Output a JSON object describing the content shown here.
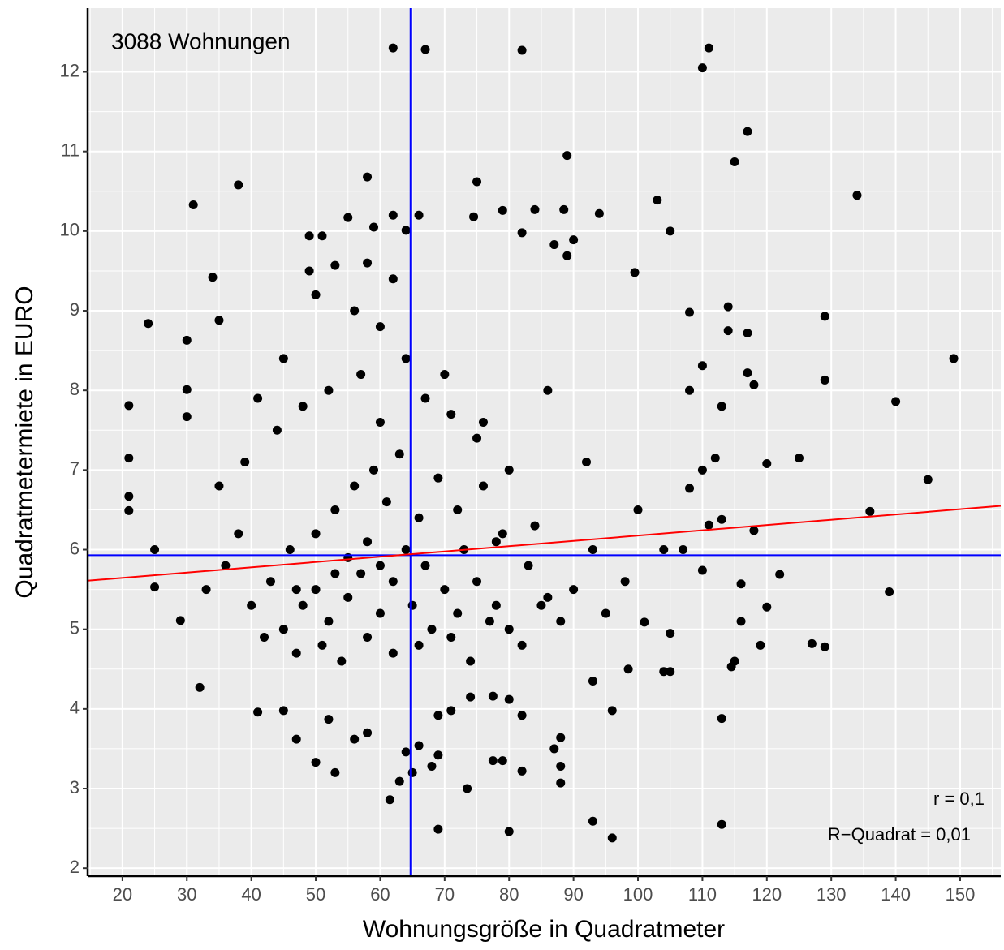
{
  "chart_data": {
    "type": "scatter",
    "x_label": "Wohnungsgröße in Quadratmeter",
    "y_label": "Quadratmetermiete in EURO",
    "annotations": [
      "3088 Wohnungen",
      "r = 0,1",
      "R−Quadrat = 0,01"
    ],
    "xlim": [
      14.6,
      156.3
    ],
    "ylim": [
      1.9,
      12.8
    ],
    "xticks": [
      20,
      30,
      40,
      50,
      60,
      70,
      80,
      90,
      100,
      110,
      120,
      130,
      140,
      150
    ],
    "yticks": [
      2,
      3,
      4,
      5,
      6,
      7,
      8,
      9,
      10,
      11,
      12
    ],
    "grid": true,
    "color": "#000000",
    "x": [
      62,
      67,
      82,
      111,
      110,
      117,
      115,
      89,
      58,
      38,
      31,
      75,
      134,
      103,
      105,
      99.5,
      34,
      149,
      140,
      145,
      129,
      129,
      120,
      125,
      136,
      139,
      129,
      127,
      119,
      113,
      96,
      93,
      80,
      69,
      61.5,
      53,
      50,
      113,
      96,
      24,
      21,
      21,
      21,
      21,
      25,
      25,
      30,
      30,
      30,
      35,
      32,
      29,
      120,
      122,
      118,
      116,
      116,
      115,
      114.5,
      111,
      110,
      110,
      108,
      108,
      108,
      110,
      114,
      114,
      117,
      117,
      118,
      113,
      112,
      113,
      104,
      107,
      105,
      105,
      104,
      101,
      98.5,
      94,
      90,
      89,
      88.5,
      87,
      84,
      82,
      79,
      74.5,
      66,
      62,
      64,
      59,
      55,
      49,
      51,
      53,
      49,
      64,
      63,
      66,
      68,
      69,
      65,
      73.5,
      77.5,
      79,
      82,
      88,
      88,
      88,
      87,
      80,
      77.5,
      74,
      71,
      69,
      58,
      56,
      52,
      47,
      41,
      45,
      82,
      93,
      45,
      48,
      50,
      52,
      55,
      57,
      60,
      62,
      65,
      68,
      70,
      72,
      75,
      78,
      80,
      43,
      46,
      50,
      53,
      56,
      59,
      61,
      63,
      66,
      69,
      72,
      76,
      79,
      83,
      86,
      88,
      40,
      42,
      47,
      51,
      54,
      58,
      62,
      66,
      71,
      74,
      77,
      82,
      85,
      90,
      38,
      36,
      33,
      35,
      39,
      44,
      48,
      52,
      57,
      60,
      64,
      67,
      71,
      75,
      80,
      58,
      55,
      60,
      53,
      47,
      64,
      67,
      73,
      78,
      84,
      93,
      95,
      98,
      92,
      100,
      56,
      60,
      62,
      58,
      50,
      45,
      41,
      70,
      76,
      86
    ],
    "values": [
      12.3,
      12.28,
      12.27,
      12.3,
      12.05,
      11.25,
      10.87,
      10.95,
      10.68,
      10.58,
      10.33,
      10.62,
      10.45,
      10.39,
      10.0,
      9.48,
      9.42,
      8.4,
      7.86,
      6.88,
      8.93,
      8.13,
      7.08,
      7.15,
      6.48,
      5.47,
      4.78,
      4.82,
      4.8,
      2.55,
      2.38,
      2.59,
      2.46,
      2.49,
      2.86,
      3.2,
      3.33,
      3.88,
      3.98,
      8.84,
      7.81,
      7.15,
      6.67,
      6.49,
      6.0,
      5.53,
      8.01,
      7.67,
      8.63,
      8.88,
      4.27,
      5.11,
      5.28,
      5.69,
      6.24,
      5.57,
      5.1,
      4.6,
      4.53,
      6.31,
      5.74,
      7.0,
      6.77,
      8.0,
      8.98,
      8.31,
      9.05,
      8.75,
      8.72,
      8.22,
      8.07,
      7.8,
      7.15,
      6.38,
      6.0,
      6.0,
      4.95,
      4.47,
      4.47,
      5.09,
      4.5,
      10.22,
      9.89,
      9.69,
      10.27,
      9.83,
      10.27,
      9.98,
      10.26,
      10.18,
      10.2,
      10.2,
      10.01,
      10.05,
      10.17,
      9.94,
      9.94,
      9.57,
      9.5,
      3.46,
      3.09,
      3.54,
      3.28,
      3.42,
      3.2,
      3.0,
      3.35,
      3.35,
      3.22,
      3.07,
      3.28,
      3.64,
      3.5,
      4.12,
      4.16,
      4.15,
      3.98,
      3.92,
      3.7,
      3.62,
      3.87,
      3.62,
      3.96,
      3.98,
      3.92,
      4.35,
      5.0,
      5.3,
      5.5,
      5.1,
      5.4,
      5.7,
      5.2,
      5.6,
      5.3,
      5.0,
      5.5,
      5.2,
      5.6,
      5.3,
      5.0,
      5.6,
      6.0,
      6.2,
      6.5,
      6.8,
      7.0,
      6.6,
      7.2,
      6.4,
      6.9,
      6.5,
      6.8,
      6.2,
      5.8,
      5.4,
      5.1,
      5.3,
      4.9,
      4.7,
      4.8,
      4.6,
      4.9,
      4.7,
      4.8,
      4.9,
      4.6,
      5.1,
      4.8,
      5.3,
      5.5,
      6.2,
      5.8,
      5.5,
      6.8,
      7.1,
      7.5,
      7.8,
      8.0,
      8.2,
      7.6,
      8.4,
      7.9,
      7.7,
      7.4,
      7.0,
      6.1,
      5.9,
      5.8,
      5.7,
      5.5,
      6.0,
      5.8,
      6.0,
      6.1,
      6.3,
      6.0,
      5.2,
      5.6,
      7.1,
      6.5,
      9.0,
      8.8,
      9.4,
      9.6,
      9.2,
      8.4,
      7.9,
      8.2,
      7.6,
      8.0
    ],
    "mean_x": 64.7,
    "mean_y": 5.93,
    "mean_color": "#0000ff",
    "regression": {
      "x": [
        14.6,
        156.3
      ],
      "y": [
        5.61,
        6.55
      ],
      "color": "#ff0000"
    }
  }
}
